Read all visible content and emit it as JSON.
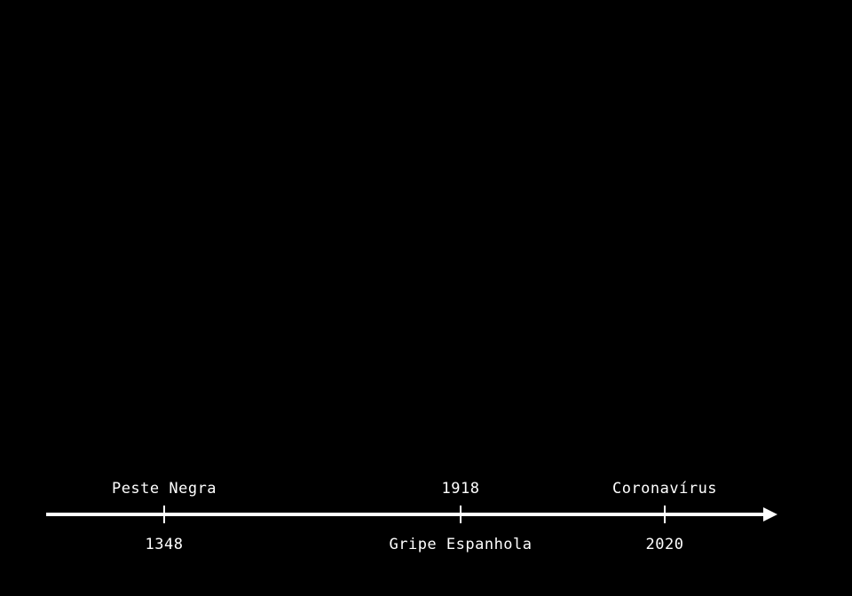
{
  "colors": {
    "background": "#000000",
    "foreground": "#ffffff"
  },
  "timeline": {
    "events": [
      {
        "label_above": "Peste Negra",
        "label_below": "1348"
      },
      {
        "label_above": "1918",
        "label_below": "Gripe Espanhola"
      },
      {
        "label_above": "Coronavírus",
        "label_below": "2020"
      }
    ]
  }
}
